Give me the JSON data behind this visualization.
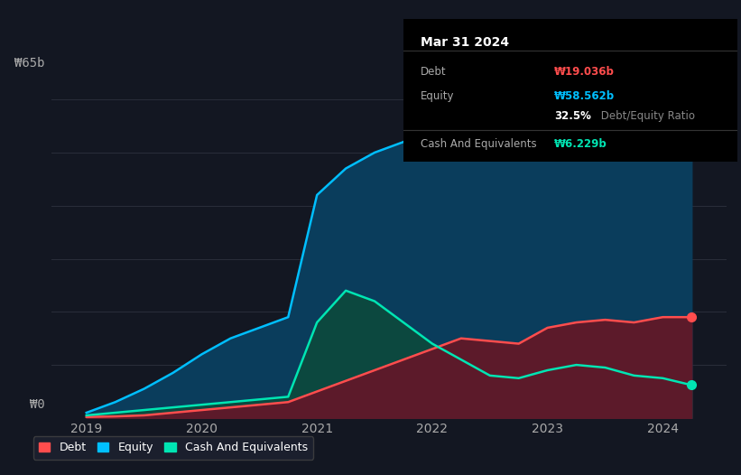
{
  "background_color": "#131722",
  "plot_bg_color": "#131722",
  "grid_color": "#2a2e3a",
  "title_box_bg": "#000000",
  "title_box_text": "Mar 31 2024",
  "tooltip_items": [
    {
      "label": "Debt",
      "value": "₩19.036b",
      "color": "#ff4d4d"
    },
    {
      "label": "Equity",
      "value": "₩58.562b",
      "color": "#00bfff"
    },
    {
      "label": "",
      "value": "32.5% Debt/Equity Ratio",
      "color": "#888888"
    },
    {
      "label": "Cash And Equivalents",
      "value": "₩6.229b",
      "color": "#00e5b3"
    }
  ],
  "y_label_top": "₩65b",
  "y_label_bottom": "₩0",
  "x_ticks": [
    2019,
    2020,
    2021,
    2022,
    2023,
    2024
  ],
  "legend": [
    {
      "label": "Debt",
      "color": "#ff4d4d"
    },
    {
      "label": "Equity",
      "color": "#00bfff"
    },
    {
      "label": "Cash And Equivalents",
      "color": "#00e5b3"
    }
  ],
  "equity_line_color": "#00bfff",
  "equity_fill_color": "#0a3d5c",
  "debt_line_color": "#ff4d4d",
  "debt_fill_color": "#5c1a2a",
  "cash_line_color": "#00e5b3",
  "cash_fill_color": "#0d4a3a",
  "dot_equity_color": "#00bfff",
  "dot_debt_color": "#ff4d4d",
  "dot_cash_color": "#00e5b3",
  "xlim": [
    2018.7,
    2024.55
  ],
  "ylim": [
    0,
    68
  ],
  "times": [
    2019.0,
    2019.25,
    2019.5,
    2019.75,
    2020.0,
    2020.25,
    2020.5,
    2020.75,
    2021.0,
    2021.25,
    2021.5,
    2021.75,
    2022.0,
    2022.25,
    2022.5,
    2022.75,
    2023.0,
    2023.25,
    2023.5,
    2023.75,
    2024.0,
    2024.25
  ],
  "equity": [
    1.0,
    3.0,
    5.5,
    8.5,
    12.0,
    15.0,
    17.0,
    19.0,
    42.0,
    47.0,
    50.0,
    52.0,
    56.0,
    60.0,
    57.0,
    55.0,
    54.0,
    56.0,
    58.0,
    60.0,
    62.0,
    58.5
  ],
  "debt": [
    0.2,
    0.3,
    0.5,
    1.0,
    1.5,
    2.0,
    2.5,
    3.0,
    5.0,
    7.0,
    9.0,
    11.0,
    13.0,
    15.0,
    14.5,
    14.0,
    17.0,
    18.0,
    18.5,
    18.0,
    19.0,
    19.0
  ],
  "cash": [
    0.5,
    1.0,
    1.5,
    2.0,
    2.5,
    3.0,
    3.5,
    4.0,
    18.0,
    24.0,
    22.0,
    18.0,
    14.0,
    11.0,
    8.0,
    7.5,
    9.0,
    10.0,
    9.5,
    8.0,
    7.5,
    6.2
  ]
}
